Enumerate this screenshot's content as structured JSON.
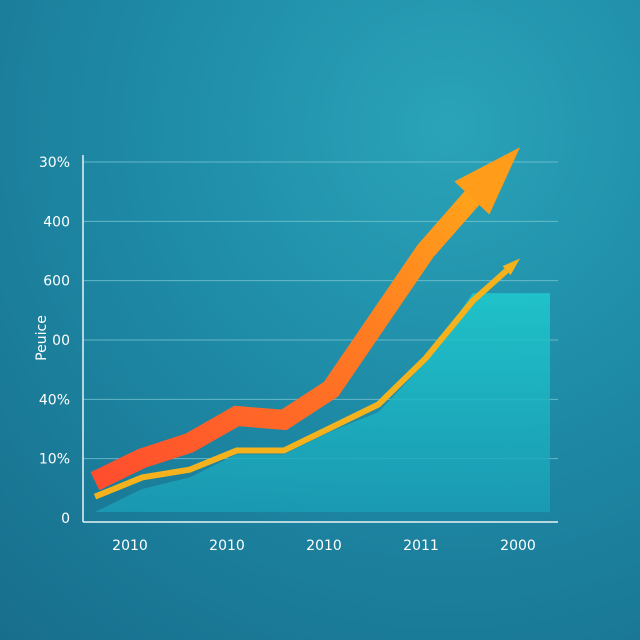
{
  "chart_data": {
    "type": "area",
    "title": "",
    "ylabel": "Peuice",
    "x_tick_labels": [
      "2010",
      "2010",
      "2010",
      "2011",
      "2000"
    ],
    "y_tick_labels": [
      "0",
      "10%",
      "40%",
      "00",
      "600",
      "400",
      "30%"
    ],
    "x": [
      1,
      2,
      3,
      4,
      5,
      6,
      7,
      8,
      9,
      10
    ],
    "grid": true,
    "series": [
      {
        "values": [
          0.8,
          1.4,
          1.8,
          2.5,
          2.4,
          3.2,
          5.0,
          6.8,
          8.2,
          9.5
        ],
        "color": "#ff6a2a",
        "style": "thick-arrow"
      },
      {
        "values": [
          0.4,
          0.9,
          1.1,
          1.6,
          1.6,
          2.2,
          2.8,
          4.0,
          5.5,
          6.6
        ],
        "color": "#f5b21c",
        "style": "arrow"
      },
      {
        "values": [
          0,
          0.6,
          0.9,
          1.5,
          1.5,
          2.1,
          2.6,
          3.9,
          5.7,
          5.7
        ],
        "color": "#21c2c8",
        "style": "area"
      }
    ]
  },
  "colors": {
    "axis": "#e6f3f6",
    "grid": "#7cc7d3",
    "orange": "#ff6a2a",
    "yellow": "#f5b21c",
    "teal": "#21c2c8"
  }
}
